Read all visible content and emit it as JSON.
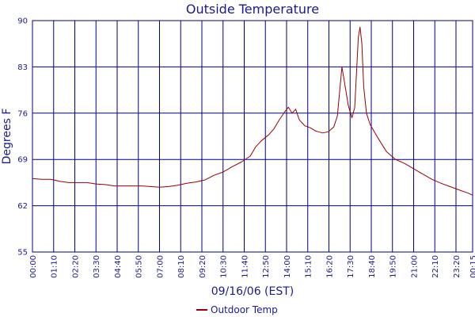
{
  "chart_data": {
    "type": "line",
    "title": "Outside Temperature",
    "xlabel": "09/16/06 (EST)",
    "ylabel": "Degrees F",
    "ylim": [
      55,
      90
    ],
    "yticks": [
      55,
      62,
      69,
      76,
      83,
      90
    ],
    "x_unit": "hours since 00:00 on 09/16/06",
    "xlim": [
      0,
      24.25
    ],
    "xticks": [
      {
        "value": 0,
        "label": "00:00"
      },
      {
        "value": 1.1667,
        "label": "01:10"
      },
      {
        "value": 2.3333,
        "label": "02:20"
      },
      {
        "value": 3.5,
        "label": "03:30"
      },
      {
        "value": 4.6667,
        "label": "04:40"
      },
      {
        "value": 5.8333,
        "label": "05:50"
      },
      {
        "value": 7.0,
        "label": "07:00"
      },
      {
        "value": 8.1667,
        "label": "08:10"
      },
      {
        "value": 9.3333,
        "label": "09:20"
      },
      {
        "value": 10.5,
        "label": "10:30"
      },
      {
        "value": 11.6667,
        "label": "11:40"
      },
      {
        "value": 12.8333,
        "label": "12:50"
      },
      {
        "value": 14.0,
        "label": "14:00"
      },
      {
        "value": 15.1667,
        "label": "15:10"
      },
      {
        "value": 16.3333,
        "label": "16:20"
      },
      {
        "value": 17.5,
        "label": "17:30"
      },
      {
        "value": 18.6667,
        "label": "18:40"
      },
      {
        "value": 19.8333,
        "label": "19:50"
      },
      {
        "value": 21.0,
        "label": "21:00"
      },
      {
        "value": 22.1667,
        "label": "22:10"
      },
      {
        "value": 23.3333,
        "label": "23:20"
      },
      {
        "value": 24.25,
        "label": "00:15"
      }
    ],
    "grid": true,
    "legend_position": "bottom",
    "series": [
      {
        "name": "Outdoor Temp",
        "color": "#990000",
        "points": [
          [
            0.0,
            66.1
          ],
          [
            0.5,
            66.0
          ],
          [
            1.0,
            66.0
          ],
          [
            1.5,
            65.7
          ],
          [
            2.0,
            65.5
          ],
          [
            2.5,
            65.5
          ],
          [
            3.0,
            65.5
          ],
          [
            3.5,
            65.3
          ],
          [
            4.0,
            65.2
          ],
          [
            4.5,
            65.0
          ],
          [
            5.0,
            65.0
          ],
          [
            5.5,
            65.0
          ],
          [
            6.0,
            65.0
          ],
          [
            6.5,
            64.9
          ],
          [
            7.0,
            64.8
          ],
          [
            7.5,
            64.9
          ],
          [
            8.0,
            65.1
          ],
          [
            8.5,
            65.4
          ],
          [
            9.0,
            65.6
          ],
          [
            9.5,
            65.9
          ],
          [
            10.0,
            66.6
          ],
          [
            10.5,
            67.1
          ],
          [
            11.0,
            67.9
          ],
          [
            11.5,
            68.6
          ],
          [
            12.0,
            69.5
          ],
          [
            12.3,
            70.9
          ],
          [
            12.6,
            71.8
          ],
          [
            13.0,
            72.7
          ],
          [
            13.3,
            73.6
          ],
          [
            13.6,
            75.0
          ],
          [
            13.9,
            76.2
          ],
          [
            14.1,
            76.9
          ],
          [
            14.3,
            76.0
          ],
          [
            14.5,
            76.6
          ],
          [
            14.7,
            75.0
          ],
          [
            15.0,
            74.1
          ],
          [
            15.3,
            73.8
          ],
          [
            15.6,
            73.3
          ],
          [
            16.0,
            73.0
          ],
          [
            16.3,
            73.2
          ],
          [
            16.6,
            73.9
          ],
          [
            16.8,
            75.6
          ],
          [
            16.95,
            80.0
          ],
          [
            17.05,
            83.0
          ],
          [
            17.2,
            80.5
          ],
          [
            17.4,
            77.2
          ],
          [
            17.6,
            75.3
          ],
          [
            17.75,
            76.8
          ],
          [
            17.85,
            82.0
          ],
          [
            17.95,
            87.5
          ],
          [
            18.05,
            89.0
          ],
          [
            18.15,
            86.5
          ],
          [
            18.25,
            80.0
          ],
          [
            18.4,
            76.0
          ],
          [
            18.6,
            74.3
          ],
          [
            19.0,
            72.4
          ],
          [
            19.5,
            70.2
          ],
          [
            20.0,
            69.0
          ],
          [
            20.5,
            68.4
          ],
          [
            21.0,
            67.6
          ],
          [
            21.5,
            66.8
          ],
          [
            22.0,
            66.0
          ],
          [
            22.5,
            65.4
          ],
          [
            23.0,
            64.9
          ],
          [
            23.5,
            64.4
          ],
          [
            24.0,
            63.9
          ],
          [
            24.25,
            63.6
          ]
        ]
      }
    ]
  }
}
